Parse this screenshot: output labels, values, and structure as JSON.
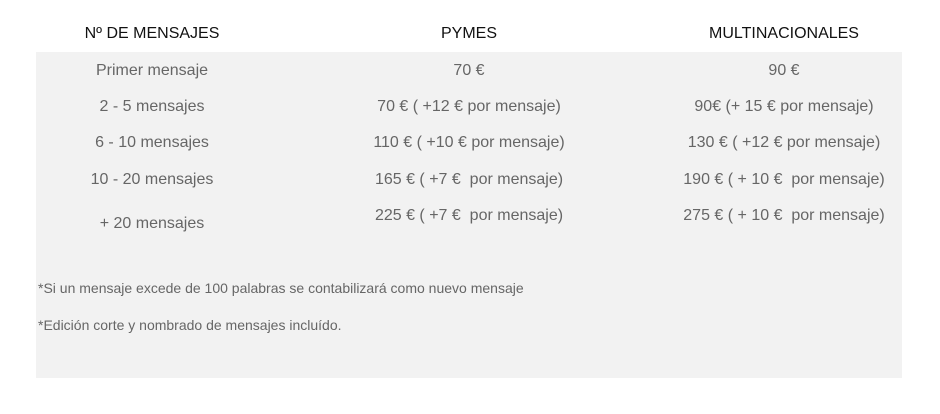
{
  "headers": [
    "Nº DE MENSAJES",
    "PYMES",
    "MULTINACIONALES"
  ],
  "rows": [
    [
      "Primer mensaje",
      "70 €",
      "90 €"
    ],
    [
      "2 - 5 mensajes",
      "70 € ( +12 € por mensaje)",
      "90€ (+ 15 € por mensaje)"
    ],
    [
      "6 - 10 mensajes",
      "110 € ( +10 € por mensaje)",
      "130 € ( +12 € por mensaje)"
    ],
    [
      "10 - 20 mensajes",
      "165 € ( +7 €  por mensaje)",
      "190 € ( + 10 €  por mensaje)"
    ],
    [
      "+ 20 mensajes",
      "225 € ( +7 €  por mensaje)",
      "275 € ( + 10 €  por mensaje)"
    ]
  ],
  "notes": [
    "*Si un mensaje excede de 100 palabras se contabilizará como nuevo mensaje",
    "*Edición corte y nombrado de mensajes incluído."
  ]
}
